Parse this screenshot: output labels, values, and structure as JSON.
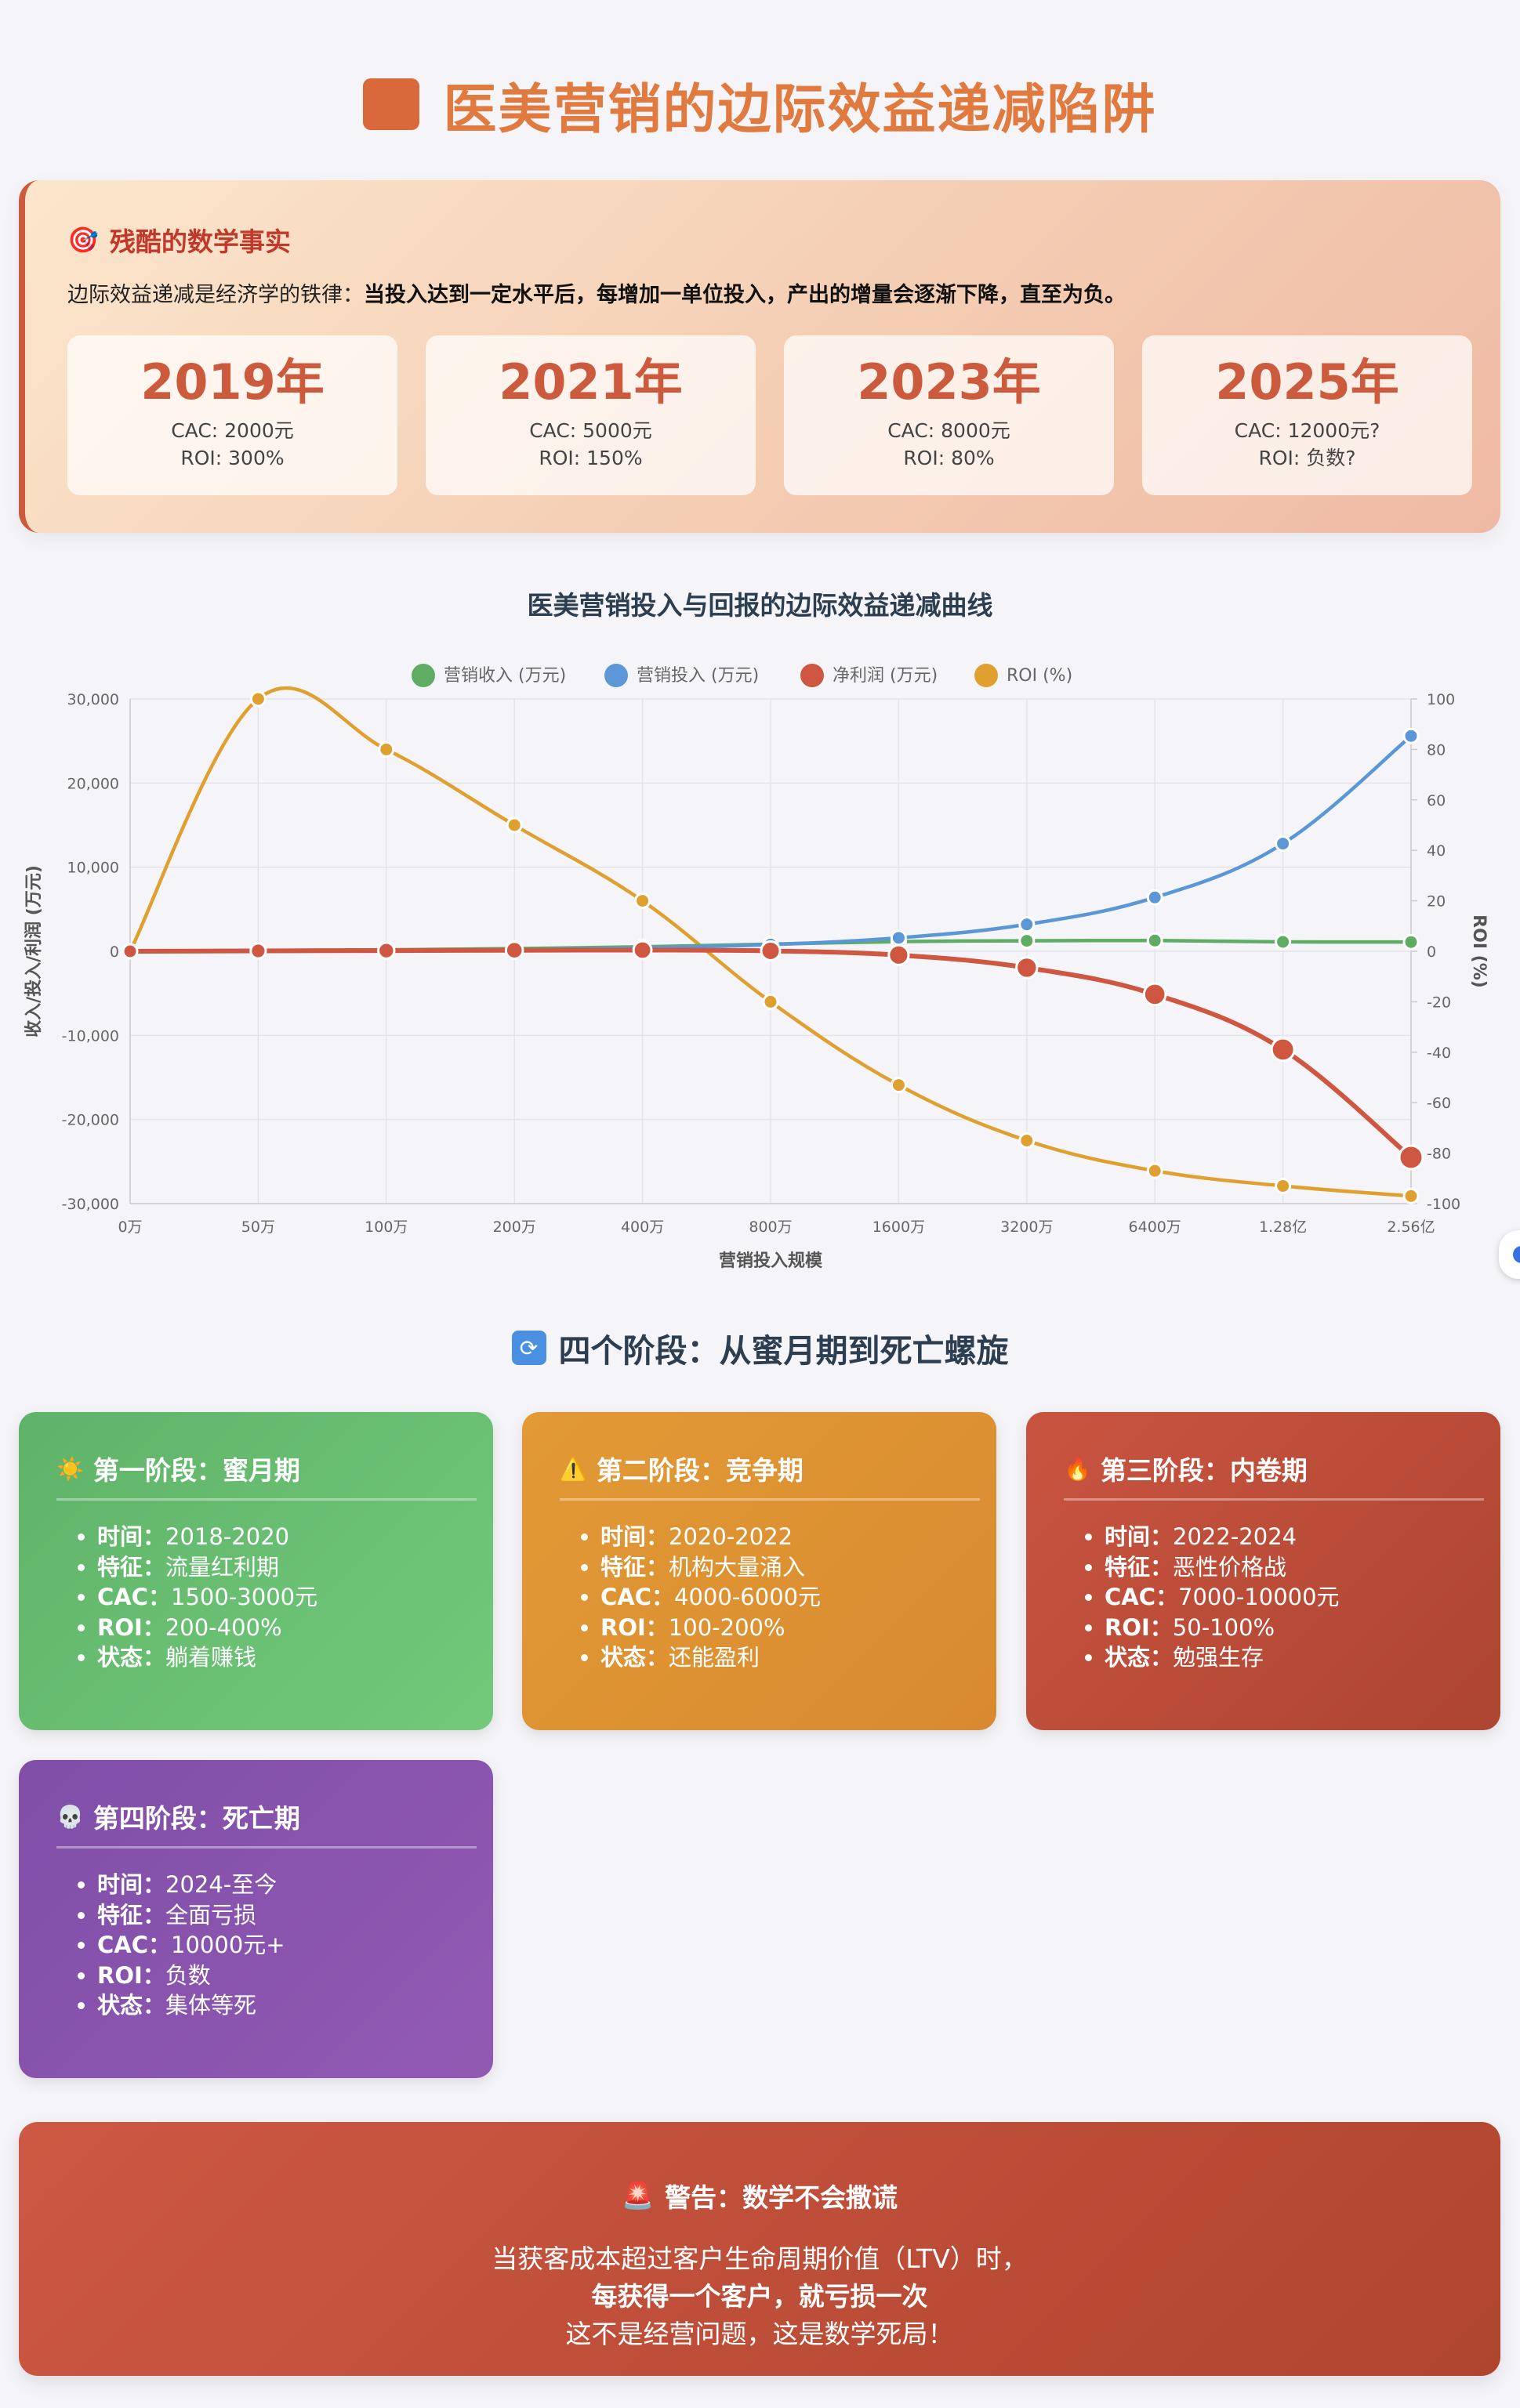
{
  "header": {
    "title": "医美营销的边际效益递减陷阱"
  },
  "facts": {
    "icon": "target-icon",
    "title": "残酷的数学事实",
    "desc_prefix": "边际效益递减是经济学的铁律：",
    "desc_bold": "当投入达到一定水平后，每增加一单位投入，产出的增量会逐渐下降，直至为负。",
    "cards": [
      {
        "year": "2019年",
        "cac": "CAC: 2000元",
        "roi": "ROI: 300%"
      },
      {
        "year": "2021年",
        "cac": "CAC: 5000元",
        "roi": "ROI: 150%"
      },
      {
        "year": "2023年",
        "cac": "CAC: 8000元",
        "roi": "ROI: 80%"
      },
      {
        "year": "2025年",
        "cac": "CAC: 12000元?",
        "roi": "ROI: 负数?"
      }
    ]
  },
  "chart_title": "医美营销投入与回报的边际效益递减曲线",
  "chart_data": {
    "type": "line",
    "title": "医美营销投入与回报的边际效益递减曲线",
    "xlabel": "营销投入规模",
    "ylabel": "收入/投入/利润 (万元)",
    "y2label": "ROI (%)",
    "categories": [
      "0万",
      "50万",
      "100万",
      "200万",
      "400万",
      "800万",
      "1600万",
      "3200万",
      "6400万",
      "1.28亿",
      "2.56亿"
    ],
    "ylim": [
      -30000,
      30000
    ],
    "yticks": [
      "30,000",
      "20,000",
      "10,000",
      "0",
      "-10,000",
      "-20,000",
      "-30,000"
    ],
    "y2lim": [
      -100,
      100
    ],
    "y2ticks": [
      "100",
      "80",
      "60",
      "40",
      "20",
      "0",
      "-20",
      "-40",
      "-60",
      "-80",
      "-100"
    ],
    "grid": true,
    "legend_position": "top",
    "series": [
      {
        "name": "营销收入 (万元)",
        "axis": "left",
        "color": "#5fad65",
        "values": [
          0,
          100,
          180,
          320,
          540,
          850,
          1150,
          1250,
          1280,
          1120,
          1100
        ]
      },
      {
        "name": "营销投入 (万元)",
        "axis": "left",
        "color": "#5b97d6",
        "values": [
          0,
          50,
          100,
          200,
          400,
          800,
          1600,
          3200,
          6400,
          12800,
          25600
        ]
      },
      {
        "name": "净利润 (万元)",
        "axis": "left",
        "color": "#cf5640",
        "values": [
          0,
          50,
          80,
          120,
          140,
          50,
          -450,
          -1950,
          -5120,
          -11680,
          -24500
        ]
      },
      {
        "name": "ROI (%)",
        "axis": "right",
        "color": "#e0a030",
        "values": [
          0,
          100,
          80,
          50,
          20,
          -20,
          -53,
          -75,
          -87,
          -93,
          -97
        ]
      }
    ]
  },
  "stages_title": {
    "icon": "cycle-icon",
    "text": "四个阶段：从蜜月期到死亡螺旋"
  },
  "stages": [
    {
      "icon": "sun-icon",
      "icon_glyph": "☀️",
      "title": "第一阶段：蜜月期",
      "items": [
        {
          "k": "时间",
          "v": "2018-2020"
        },
        {
          "k": "特征",
          "v": "流量红利期"
        },
        {
          "k": "CAC",
          "v": "1500-3000元"
        },
        {
          "k": "ROI",
          "v": "200-400%"
        },
        {
          "k": "状态",
          "v": "躺着赚钱"
        }
      ]
    },
    {
      "icon": "warning-icon",
      "icon_glyph": "⚠️",
      "title": "第二阶段：竞争期",
      "items": [
        {
          "k": "时间",
          "v": "2020-2022"
        },
        {
          "k": "特征",
          "v": "机构大量涌入"
        },
        {
          "k": "CAC",
          "v": "4000-6000元"
        },
        {
          "k": "ROI",
          "v": "100-200%"
        },
        {
          "k": "状态",
          "v": "还能盈利"
        }
      ]
    },
    {
      "icon": "fire-icon",
      "icon_glyph": "🔥",
      "title": "第三阶段：内卷期",
      "items": [
        {
          "k": "时间",
          "v": "2022-2024"
        },
        {
          "k": "特征",
          "v": "恶性价格战"
        },
        {
          "k": "CAC",
          "v": "7000-10000元"
        },
        {
          "k": "ROI",
          "v": "50-100%"
        },
        {
          "k": "状态",
          "v": "勉强生存"
        }
      ]
    },
    {
      "icon": "skull-icon",
      "icon_glyph": "💀",
      "title": "第四阶段：死亡期",
      "items": [
        {
          "k": "时间",
          "v": "2024-至今"
        },
        {
          "k": "特征",
          "v": "全面亏损"
        },
        {
          "k": "CAC",
          "v": "10000元+"
        },
        {
          "k": "ROI",
          "v": "负数"
        },
        {
          "k": "状态",
          "v": "集体等死"
        }
      ]
    }
  ],
  "warning": {
    "icon": "siren-icon",
    "title": "警告：数学不会撒谎",
    "line1": "当获客成本超过客户生命周期价值（LTV）时，",
    "line2": "每获得一个客户，就亏损一次",
    "line3": "这不是经营问题，这是数学死局！"
  }
}
